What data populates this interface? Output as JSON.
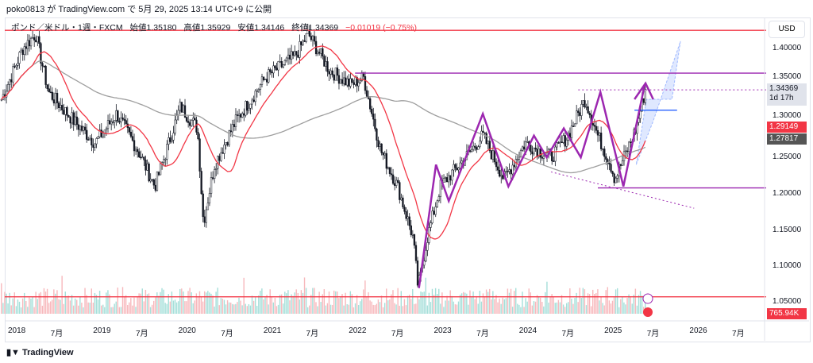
{
  "published": "poko0813 が TradingView.com で 5月 29, 2025 13:14 UTC+9 に公開",
  "legend": {
    "symbol": "ポンド／米ドル・1週・FXCM",
    "open": "始値1.35180",
    "high": "高値1.35929",
    "low": "安値1.34146",
    "close": "終値1.34369",
    "change": "−0.01019 (−0.75%)"
  },
  "currency": "USD",
  "price_tag": {
    "value": "1.34369",
    "countdown": "1d 17h"
  },
  "ma_tags": {
    "ma_fast": "1.29149",
    "ma_slow": "1.27817"
  },
  "volume_tag": "765.94K",
  "brand": "TradingView",
  "colors": {
    "up": "#131722",
    "red": "#f23645",
    "purple": "#9c27b0",
    "blue": "#2962ff",
    "ma_slow": "#9e9e9e",
    "vol_up": "#a5dfd9",
    "vol_down": "#f7b8bc"
  },
  "chart_data": {
    "type": "candlestick",
    "title": "GBP/USD 1W FXCM",
    "ylim": [
      1.03,
      1.44
    ],
    "yticks": [
      "1.40000",
      "1.35000",
      "1.30000",
      "1.25000",
      "1.20000",
      "1.15000",
      "1.10000",
      "1.05000"
    ],
    "xticks": [
      "2018",
      "7月",
      "2019",
      "7月",
      "2020",
      "7月",
      "2021",
      "7月",
      "2022",
      "7月",
      "2023",
      "7月",
      "2024",
      "7月",
      "2025",
      "7月",
      "2026",
      "7月"
    ],
    "approx_close_path": [
      [
        2017.85,
        1.33
      ],
      [
        2018.1,
        1.4
      ],
      [
        2018.25,
        1.42
      ],
      [
        2018.4,
        1.34
      ],
      [
        2018.7,
        1.3
      ],
      [
        2018.95,
        1.27
      ],
      [
        2019.2,
        1.31
      ],
      [
        2019.45,
        1.26
      ],
      [
        2019.65,
        1.21
      ],
      [
        2019.95,
        1.32
      ],
      [
        2020.15,
        1.29
      ],
      [
        2020.22,
        1.16
      ],
      [
        2020.35,
        1.24
      ],
      [
        2020.6,
        1.3
      ],
      [
        2020.95,
        1.36
      ],
      [
        2021.3,
        1.39
      ],
      [
        2021.45,
        1.42
      ],
      [
        2021.7,
        1.37
      ],
      [
        2021.95,
        1.35
      ],
      [
        2022.1,
        1.36
      ],
      [
        2022.3,
        1.26
      ],
      [
        2022.5,
        1.21
      ],
      [
        2022.68,
        1.14
      ],
      [
        2022.74,
        1.07
      ],
      [
        2022.85,
        1.14
      ],
      [
        2023.0,
        1.21
      ],
      [
        2023.3,
        1.25
      ],
      [
        2023.5,
        1.28
      ],
      [
        2023.75,
        1.22
      ],
      [
        2024.0,
        1.27
      ],
      [
        2024.3,
        1.25
      ],
      [
        2024.5,
        1.28
      ],
      [
        2024.7,
        1.33
      ],
      [
        2024.85,
        1.28
      ],
      [
        2025.0,
        1.24
      ],
      [
        2025.05,
        1.22
      ],
      [
        2025.3,
        1.29
      ],
      [
        2025.41,
        1.34369
      ]
    ],
    "horizontal_lines": [
      {
        "price": 1.425,
        "color": "red"
      },
      {
        "price": 1.058,
        "color": "red"
      },
      {
        "price": 1.366,
        "color": "purple",
        "from": 2022.0
      },
      {
        "price": 1.208,
        "color": "purple",
        "from": 2024.85
      },
      {
        "price": 1.315,
        "color": "blue",
        "from": 2025.28,
        "to": 2025.78
      },
      {
        "price": 1.343,
        "color": "purple-dotted",
        "from": 2024.62
      }
    ],
    "zigzag": [
      [
        2022.75,
        1.07
      ],
      [
        2022.95,
        1.24
      ],
      [
        2023.1,
        1.19
      ],
      [
        2023.5,
        1.31
      ],
      [
        2023.8,
        1.21
      ],
      [
        2024.1,
        1.28
      ],
      [
        2024.25,
        1.25
      ],
      [
        2024.45,
        1.29
      ],
      [
        2024.65,
        1.25
      ],
      [
        2024.88,
        1.34
      ],
      [
        2025.15,
        1.21
      ],
      [
        2025.4,
        1.35
      ]
    ],
    "trendline_dotted": [
      [
        2024.3,
        1.23
      ],
      [
        2025.98,
        1.18
      ]
    ]
  }
}
